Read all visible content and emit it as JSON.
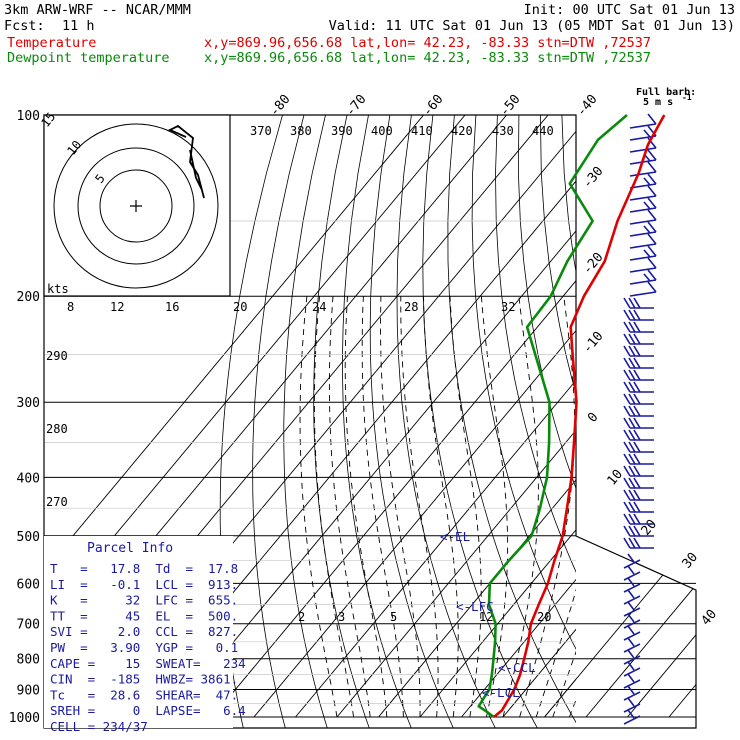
{
  "header": {
    "title": "3km ARW-WRF -- NCAR/MMM",
    "fcst_label": "Fcst:",
    "fcst_value": "11 h",
    "init": "Init: 00 UTC Sat 01 Jun 13",
    "valid": "Valid: 11 UTC Sat 01 Jun 13 (05 MDT Sat 01 Jun 13)",
    "temperature_label": "Temperature",
    "temperature_info": "x,y=869.96,656.68   lat,lon= 42.23, -83.33  stn=DTW ,72537",
    "dewpoint_label": "Dewpoint temperature",
    "dewpoint_info": "x,y=869.96,656.68   lat,lon= 42.23, -83.33  stn=DTW ,72537"
  },
  "colors": {
    "temperature": "#e00000",
    "dewpoint": "#0a8a0a",
    "parcel": "#1a1aa0",
    "isobar": "#000000",
    "moist_adiabat": "#000000"
  },
  "chart_data": {
    "type": "line",
    "subtype": "skew-T log-p sounding",
    "y_scale": "log",
    "pressure_ticks": [
      "100",
      "200",
      "300",
      "400",
      "500",
      "600",
      "700",
      "800",
      "900",
      "1000"
    ],
    "temperature_ticks": [
      "-80",
      "-70",
      "-60",
      "-50",
      "-40",
      "-30",
      "-20",
      "-10",
      "0",
      "10",
      "20",
      "30",
      "40"
    ],
    "theta_e_labels": [
      "370",
      "380",
      "390",
      "400",
      "410",
      "420",
      "430",
      "440"
    ],
    "theta_labels": [
      "290",
      "280",
      "270"
    ],
    "mixing_ratio_labels": [
      "2",
      "3",
      "5",
      "12",
      "20"
    ],
    "hodograph": {
      "units": "kts",
      "ring_labels": [
        "5",
        "10",
        "15"
      ],
      "speed_axis_labels": [
        "8",
        "12",
        "16",
        "20",
        "24",
        "28",
        "32"
      ]
    },
    "wind_barb_legend": {
      "line1": "Full barb:",
      "line2": "5 m s"
    },
    "level_markers": [
      "<-EL",
      "<-LFC",
      "<-CCL",
      "<-LCL"
    ],
    "series": [
      {
        "name": "Temperature",
        "points": [
          [
            1000,
            17.8
          ],
          [
            975,
            18.4
          ],
          [
            950,
            18.0
          ],
          [
            925,
            17.6
          ],
          [
            900,
            17.2
          ],
          [
            850,
            15.6
          ],
          [
            800,
            13.4
          ],
          [
            750,
            11.0
          ],
          [
            700,
            8.0
          ],
          [
            650,
            6.0
          ],
          [
            600,
            4.0
          ],
          [
            550,
            1.0
          ],
          [
            500,
            -2.0
          ],
          [
            450,
            -6.5
          ],
          [
            400,
            -11.6
          ],
          [
            350,
            -18.0
          ],
          [
            300,
            -25.5
          ],
          [
            250,
            -36.0
          ],
          [
            225,
            -42.0
          ],
          [
            200,
            -45.0
          ],
          [
            175,
            -47.0
          ],
          [
            150,
            -52.0
          ],
          [
            125,
            -56.5
          ],
          [
            112,
            -60.0
          ],
          [
            100,
            -62.0
          ]
        ]
      },
      {
        "name": "Dewpoint temperature",
        "points": [
          [
            1000,
            17.8
          ],
          [
            980,
            15.0
          ],
          [
            960,
            12.0
          ],
          [
            925,
            11.5
          ],
          [
            900,
            11.2
          ],
          [
            850,
            8.8
          ],
          [
            800,
            6.0
          ],
          [
            750,
            3.0
          ],
          [
            700,
            -0.5
          ],
          [
            650,
            -6.0
          ],
          [
            600,
            -10.0
          ],
          [
            550,
            -10.0
          ],
          [
            500,
            -9.5
          ],
          [
            450,
            -13.0
          ],
          [
            400,
            -17.5
          ],
          [
            350,
            -24.0
          ],
          [
            300,
            -32.0
          ],
          [
            250,
            -45.0
          ],
          [
            225,
            -52.5
          ],
          [
            200,
            -53.0
          ],
          [
            175,
            -56.0
          ],
          [
            150,
            -58.0
          ],
          [
            130,
            -71.0
          ],
          [
            110,
            -73.0
          ],
          [
            100,
            -71.0
          ]
        ]
      }
    ]
  },
  "parcel_info": {
    "title": "Parcel Info",
    "rows": [
      "T   =   17.8  Td  =  17.8",
      "LI  =   -0.1  LCL =  913.",
      "K   =     32  LFC =  655.",
      "TT  =     45  EL  =  500.",
      "SVI =    2.0  CCL =  827.",
      "PW  =   3.90  YGP =   0.1",
      "CAPE =    15  SWEAT=   234",
      "CIN  =  -185  HWBZ= 3861.",
      "Tc   =  28.6  SHEAR=  47.",
      "SREH =     0  LAPSE=   6.4",
      "CELL = 234/37"
    ]
  }
}
